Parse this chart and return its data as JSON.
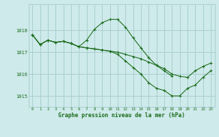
{
  "line1_y": [
    1017.8,
    1017.35,
    1017.55,
    1017.45,
    1017.5,
    1017.4,
    1017.25,
    1017.55,
    1018.05,
    1018.35,
    1018.5,
    1018.5,
    1018.15,
    1017.65,
    1017.2,
    1016.75,
    1016.4,
    1016.15,
    1015.9,
    null,
    null,
    null,
    null,
    null
  ],
  "line2_y": [
    1017.8,
    1017.35,
    1017.55,
    1017.45,
    1017.5,
    1017.4,
    1017.25,
    1017.2,
    1017.15,
    1017.1,
    1017.05,
    1017.0,
    1016.9,
    1016.8,
    1016.7,
    1016.55,
    1016.4,
    1016.25,
    1016.0,
    1015.9,
    1015.85,
    1016.15,
    1016.35,
    1016.5
  ],
  "line3_y": [
    1017.8,
    1017.35,
    1017.55,
    1017.45,
    1017.5,
    1017.4,
    1017.25,
    1017.2,
    1017.15,
    1017.1,
    1017.05,
    1016.9,
    1016.6,
    1016.3,
    1016.0,
    1015.6,
    1015.35,
    1015.25,
    1015.0,
    1015.0,
    1015.35,
    1015.5,
    1015.85,
    1016.15
  ],
  "x": [
    0,
    1,
    2,
    3,
    4,
    5,
    6,
    7,
    8,
    9,
    10,
    11,
    12,
    13,
    14,
    15,
    16,
    17,
    18,
    19,
    20,
    21,
    22,
    23
  ],
  "line_color": "#1a6b1a",
  "bg_color": "#ceeaea",
  "grid_color": "#a8cece",
  "xlabel": "Graphe pression niveau de la mer (hPa)",
  "ylim": [
    1014.5,
    1019.2
  ],
  "xlim": [
    -0.5,
    23.5
  ],
  "yticks": [
    1015,
    1016,
    1017,
    1018
  ],
  "xticks": [
    0,
    1,
    2,
    3,
    4,
    5,
    6,
    7,
    8,
    9,
    10,
    11,
    12,
    13,
    14,
    15,
    16,
    17,
    18,
    19,
    20,
    21,
    22,
    23
  ]
}
